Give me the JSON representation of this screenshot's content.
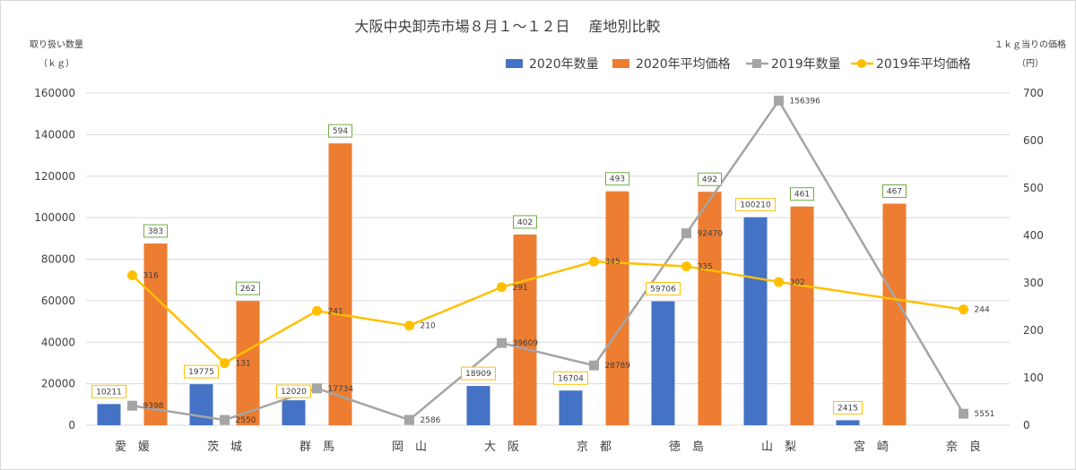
{
  "chart_data": {
    "type": "bar",
    "title": "大阪中央卸売市場８月１～１２日　 産地別比較",
    "y_left_label_line1": "取り扱い数量",
    "y_left_label_line2": "（ｋｇ）",
    "y_right_label_line1": "１ｋｇ当りの価格",
    "y_right_label_line2": "（円）",
    "categories": [
      "愛　媛",
      "茨　城",
      "群　馬",
      "岡　山",
      "大　阪",
      "京　都",
      "徳　島",
      "山　梨",
      "宮　崎",
      "奈　良"
    ],
    "ylim_left": [
      0,
      160000
    ],
    "yticks_left": [
      "0",
      "20000",
      "40000",
      "60000",
      "80000",
      "100000",
      "120000",
      "140000",
      "160000"
    ],
    "ylim_right": [
      0,
      700
    ],
    "yticks_right": [
      "0",
      "100",
      "200",
      "300",
      "400",
      "500",
      "600",
      "700"
    ],
    "legend_position": "top-right",
    "grid": true,
    "series": [
      {
        "name": "2020年数量",
        "kind": "bar",
        "axis": "left",
        "color": "#4472c4",
        "values": [
          10211,
          19775,
          12020,
          null,
          18909,
          16704,
          59706,
          100210,
          2415,
          null
        ],
        "labels": [
          "10211",
          "19775",
          "12020",
          "",
          "18909",
          "16704",
          "59706",
          "100210",
          "2415",
          ""
        ]
      },
      {
        "name": "2020年平均価格",
        "kind": "bar",
        "axis": "right",
        "color": "#ed7d31",
        "values": [
          383,
          262,
          594,
          null,
          402,
          493,
          492,
          461,
          467,
          null
        ],
        "labels": [
          "383",
          "262",
          "594",
          "",
          "402",
          "493",
          "492",
          "461",
          "467",
          ""
        ]
      },
      {
        "name": "2019年数量",
        "kind": "line",
        "axis": "left",
        "color": "#a5a5a5",
        "values": [
          9398,
          2550,
          17734,
          2586,
          39609,
          28789,
          92470,
          156396,
          null,
          5551
        ],
        "labels": [
          "9398",
          "2550",
          "17734",
          "2586",
          "39609",
          "28789",
          "92470",
          "156396",
          "",
          "5551"
        ]
      },
      {
        "name": "2019年平均価格",
        "kind": "line",
        "axis": "right",
        "color": "#ffc000",
        "values": [
          316,
          131,
          241,
          210,
          291,
          345,
          335,
          302,
          null,
          244
        ],
        "labels": [
          "316",
          "131",
          "241",
          "210",
          "291",
          "345",
          "335",
          "302",
          "",
          "244"
        ]
      }
    ]
  }
}
